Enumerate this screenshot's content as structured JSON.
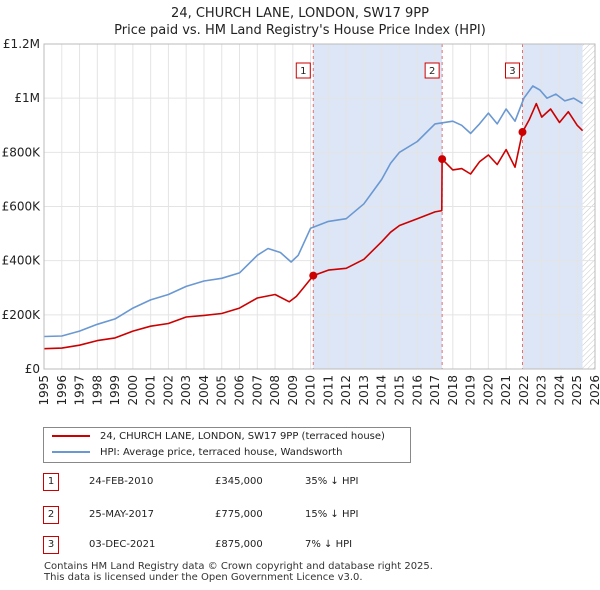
{
  "chart_data": {
    "type": "line",
    "title": "24, CHURCH LANE, LONDON, SW17 9PP",
    "subtitle": "Price paid vs. HM Land Registry's House Price Index (HPI)",
    "xlim": [
      1995.0,
      2026.0
    ],
    "ylim": [
      0,
      1200000
    ],
    "y_ticks": [
      0,
      200000,
      400000,
      600000,
      800000,
      1000000,
      1200000
    ],
    "y_tick_labels": [
      "£0",
      "£200K",
      "£400K",
      "£600K",
      "£800K",
      "£1M",
      "£1.2M"
    ],
    "x_ticks": [
      1995,
      1996,
      1997,
      1998,
      1999,
      2000,
      2001,
      2002,
      2003,
      2004,
      2005,
      2006,
      2007,
      2008,
      2009,
      2010,
      2011,
      2012,
      2013,
      2014,
      2015,
      2016,
      2017,
      2018,
      2019,
      2020,
      2021,
      2022,
      2023,
      2024,
      2025,
      2026
    ],
    "x_tick_labels": [
      "1995",
      "1996",
      "1997",
      "1998",
      "1999",
      "2000",
      "2001",
      "2002",
      "2003",
      "2004",
      "2005",
      "2006",
      "2007",
      "2008",
      "2009",
      "2010",
      "2011",
      "2012",
      "2013",
      "2014",
      "2015",
      "2016",
      "2017",
      "2018",
      "2019",
      "2020",
      "2021",
      "2022",
      "2023",
      "2024",
      "2025",
      "2026"
    ],
    "grid": true,
    "shaded_ranges": [
      [
        2010.15,
        2017.4
      ],
      [
        2021.92,
        2025.3
      ]
    ],
    "forecast_start": 2025.3,
    "series": [
      {
        "name": "24, CHURCH LANE, LONDON, SW17 9PP (terraced house)",
        "color": "#cc0000",
        "x": [
          1995.0,
          1996.0,
          1997.0,
          1998.0,
          1999.0,
          2000.0,
          2001.0,
          2002.0,
          2003.0,
          2004.0,
          2005.0,
          2006.0,
          2007.0,
          2008.0,
          2008.8,
          2009.2,
          2009.6,
          2010.15,
          2011.0,
          2012.0,
          2013.0,
          2014.0,
          2014.5,
          2015.0,
          2016.0,
          2017.0,
          2017.38,
          2017.4,
          2018.0,
          2018.5,
          2019.0,
          2019.5,
          2020.0,
          2020.5,
          2021.0,
          2021.5,
          2021.92,
          2022.3,
          2022.7,
          2023.0,
          2023.5,
          2024.0,
          2024.5,
          2025.0,
          2025.3
        ],
        "values": [
          75000,
          77000,
          88000,
          105000,
          115000,
          140000,
          158000,
          168000,
          192000,
          198000,
          205000,
          225000,
          262000,
          275000,
          248000,
          268000,
          300000,
          345000,
          365000,
          372000,
          405000,
          470000,
          505000,
          530000,
          555000,
          580000,
          585000,
          775000,
          735000,
          740000,
          720000,
          765000,
          790000,
          755000,
          810000,
          745000,
          875000,
          920000,
          980000,
          930000,
          960000,
          910000,
          950000,
          900000,
          880000
        ]
      },
      {
        "name": "HPI: Average price, terraced house, Wandsworth",
        "color": "#6a98d2",
        "x": [
          1995.0,
          1996.0,
          1997.0,
          1998.0,
          1999.0,
          2000.0,
          2001.0,
          2002.0,
          2003.0,
          2004.0,
          2005.0,
          2006.0,
          2007.0,
          2007.6,
          2008.3,
          2008.9,
          2009.3,
          2010.0,
          2011.0,
          2012.0,
          2013.0,
          2014.0,
          2014.5,
          2015.0,
          2016.0,
          2017.0,
          2018.0,
          2018.5,
          2019.0,
          2019.5,
          2020.0,
          2020.5,
          2021.0,
          2021.5,
          2022.0,
          2022.5,
          2022.9,
          2023.3,
          2023.8,
          2024.3,
          2024.8,
          2025.3
        ],
        "values": [
          120000,
          122000,
          140000,
          165000,
          185000,
          225000,
          255000,
          275000,
          305000,
          325000,
          335000,
          355000,
          420000,
          445000,
          430000,
          395000,
          420000,
          520000,
          545000,
          555000,
          610000,
          700000,
          760000,
          800000,
          840000,
          905000,
          915000,
          900000,
          870000,
          905000,
          945000,
          905000,
          960000,
          915000,
          1000000,
          1045000,
          1030000,
          1000000,
          1015000,
          990000,
          1000000,
          980000
        ]
      }
    ],
    "transactions": [
      {
        "num": "1",
        "date": "24-FEB-2010",
        "price": "£345,000",
        "hpi": "35% ↓ HPI",
        "x": 2010.15,
        "y": 345000
      },
      {
        "num": "2",
        "date": "25-MAY-2017",
        "price": "£775,000",
        "hpi": "15% ↓ HPI",
        "x": 2017.4,
        "y": 775000
      },
      {
        "num": "3",
        "date": "03-DEC-2021",
        "price": "£875,000",
        "hpi": "7% ↓ HPI",
        "x": 2021.92,
        "y": 875000
      }
    ],
    "legend": [
      {
        "label": "24, CHURCH LANE, LONDON, SW17 9PP (terraced house)",
        "color": "#cc0000"
      },
      {
        "label": "HPI: Average price, terraced house, Wandsworth",
        "color": "#6a98d2"
      }
    ]
  },
  "footer": {
    "line1": "Contains HM Land Registry data © Crown copyright and database right 2025.",
    "line2": "This data is licensed under the Open Government Licence v3.0."
  }
}
